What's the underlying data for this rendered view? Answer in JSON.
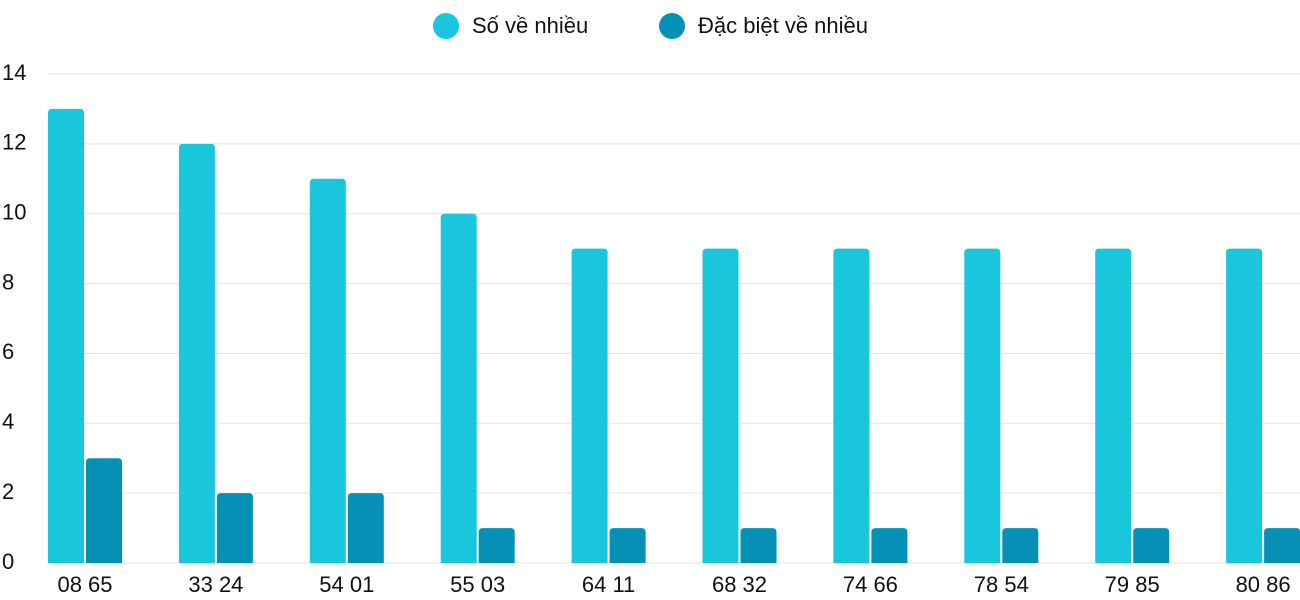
{
  "chart_data": {
    "type": "bar",
    "categories": [
      "08 65",
      "33 24",
      "54 01",
      "55 03",
      "64 11",
      "68 32",
      "74 66",
      "78 54",
      "79 85",
      "80 86"
    ],
    "series": [
      {
        "name": "Số về nhiều",
        "color": "#1ac6db",
        "values": [
          13,
          12,
          11,
          10,
          9,
          9,
          9,
          9,
          9,
          9
        ]
      },
      {
        "name": "Đặc biệt về nhiều",
        "color": "#0591b5",
        "values": [
          3,
          2,
          2,
          1,
          1,
          1,
          1,
          1,
          1,
          1
        ]
      }
    ],
    "ylim": [
      0,
      14
    ],
    "yticks": [
      0,
      2,
      4,
      6,
      8,
      10,
      12,
      14
    ],
    "grid": true,
    "legend": "top"
  }
}
